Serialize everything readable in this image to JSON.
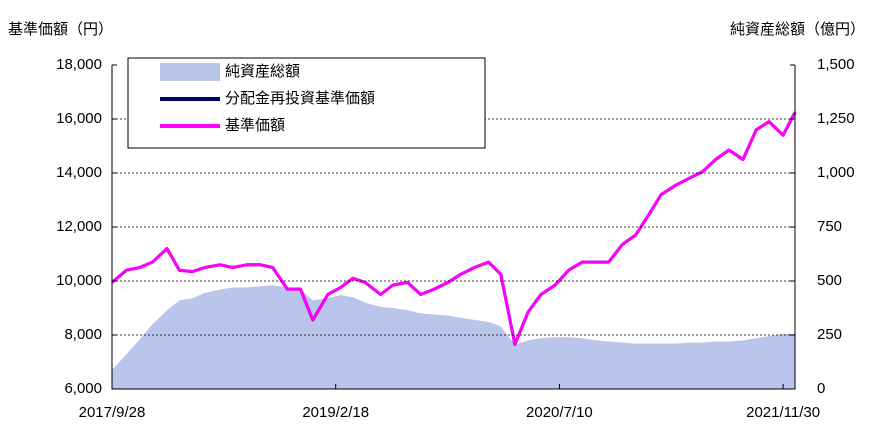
{
  "chart_data": {
    "type": "line",
    "y_label": "基準価額（円）",
    "y2_label": "純資産総額（億円）",
    "x": [
      "2017/9/28",
      "2017/10/31",
      "2017/11/30",
      "2017/12/29",
      "2018/1/31",
      "2018/2/28",
      "2018/3/30",
      "2018/4/27",
      "2018/5/31",
      "2018/6/29",
      "2018/7/31",
      "2018/8/31",
      "2018/9/28",
      "2018/10/31",
      "2018/11/30",
      "2018/12/28",
      "2019/1/31",
      "2019/2/28",
      "2019/3/29",
      "2019/4/26",
      "2019/5/31",
      "2019/6/28",
      "2019/7/31",
      "2019/8/30",
      "2019/9/30",
      "2019/10/31",
      "2019/11/29",
      "2019/12/30",
      "2020/1/31",
      "2020/2/28",
      "2020/3/31",
      "2020/4/30",
      "2020/5/29",
      "2020/6/30",
      "2020/7/31",
      "2020/8/31",
      "2020/9/30",
      "2020/10/30",
      "2020/11/30",
      "2020/12/30",
      "2021/1/29",
      "2021/2/26",
      "2021/3/31",
      "2021/4/30",
      "2021/5/31",
      "2021/6/30",
      "2021/7/30",
      "2021/8/31",
      "2021/9/30",
      "2021/10/29",
      "2021/11/30",
      "2021/12/27"
    ],
    "xlim": [
      "2017/9/28",
      "2021/12/27"
    ],
    "xticks": [
      "2017/9/28",
      "2019/2/18",
      "2020/7/10",
      "2021/11/30"
    ],
    "ylim": [
      6000,
      18000
    ],
    "yticks": [
      {
        "value": 6000,
        "label": "6,000"
      },
      {
        "value": 8000,
        "label": "8,000"
      },
      {
        "value": 10000,
        "label": "10,000"
      },
      {
        "value": 12000,
        "label": "12,000"
      },
      {
        "value": 14000,
        "label": "14,000"
      },
      {
        "value": 16000,
        "label": "16,000"
      },
      {
        "value": 18000,
        "label": "18,000"
      }
    ],
    "y2lim": [
      0,
      1500
    ],
    "y2ticks": [
      0,
      250,
      500,
      750,
      {
        "value": 1000,
        "label": "1,000"
      },
      {
        "value": 1250,
        "label": "1,250"
      },
      {
        "value": 1500,
        "label": "1,500"
      }
    ],
    "grid": true,
    "legend": "top-left",
    "series": [
      {
        "name": "純資産総額",
        "type": "area",
        "axis": "y2",
        "color": "#b9c5ea",
        "values": [
          90,
          160,
          230,
          300,
          365,
          410,
          420,
          445,
          460,
          470,
          470,
          475,
          480,
          470,
          460,
          410,
          420,
          435,
          425,
          400,
          380,
          375,
          365,
          350,
          345,
          340,
          330,
          320,
          310,
          290,
          205,
          225,
          235,
          240,
          240,
          235,
          225,
          220,
          215,
          210,
          210,
          210,
          210,
          215,
          215,
          220,
          220,
          225,
          235,
          245,
          255,
          255
        ]
      },
      {
        "name": "分配金再投資基準価額",
        "type": "line",
        "color": "#000066",
        "values": [
          9950,
          10400,
          10500,
          10700,
          11200,
          10400,
          10350,
          10500,
          10600,
          10500,
          10600,
          10600,
          10500,
          9700,
          9700,
          8550,
          9500,
          9750,
          10100,
          9950,
          9500,
          9850,
          9950,
          9500,
          9700,
          9950,
          10250,
          10500,
          10700,
          10250,
          7650,
          8850,
          9500,
          9850,
          10400,
          10700,
          10700,
          10700,
          11350,
          11700,
          12450,
          13200,
          13550,
          13800,
          14050,
          14500,
          14850,
          14500,
          15600,
          15900,
          15400,
          16250
        ]
      },
      {
        "name": "基準価額",
        "type": "line",
        "color": "#ff00ff",
        "values": [
          9950,
          10400,
          10500,
          10700,
          11200,
          10400,
          10350,
          10500,
          10600,
          10500,
          10600,
          10600,
          10500,
          9700,
          9700,
          8550,
          9500,
          9750,
          10100,
          9950,
          9500,
          9850,
          9950,
          9500,
          9700,
          9950,
          10250,
          10500,
          10700,
          10250,
          7650,
          8850,
          9500,
          9850,
          10400,
          10700,
          10700,
          10700,
          11350,
          11700,
          12450,
          13200,
          13550,
          13800,
          14050,
          14500,
          14850,
          14500,
          15600,
          15900,
          15400,
          16250
        ]
      }
    ]
  }
}
